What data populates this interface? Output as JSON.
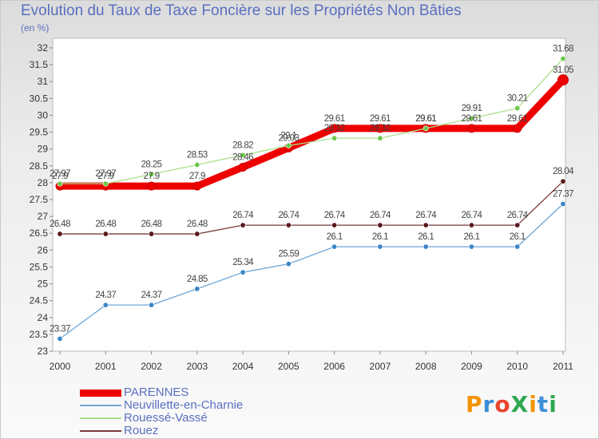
{
  "header": {
    "title": "Evolution du Taux de Taxe Foncière sur les Propriétés Non Bâties",
    "unit": "(en %)"
  },
  "logo": {
    "text": "ProXiti",
    "colors": [
      "#f29400",
      "#3a8fd6",
      "#e8462b",
      "#2fa84f",
      "#f29400",
      "#3a8fd6",
      "#2fa84f"
    ]
  },
  "chart_data": {
    "type": "line",
    "title": "Evolution du Taux de Taxe Foncière sur les Propriétés Non Bâties",
    "ylabel": "(en %)",
    "xlabel": "",
    "ylim": [
      23,
      32
    ],
    "ytick_step": 0.5,
    "grid": false,
    "legend_position": "bottom-left",
    "categories": [
      "2000",
      "2001",
      "2002",
      "2003",
      "2004",
      "2005",
      "2006",
      "2007",
      "2008",
      "2009",
      "2010",
      "2011"
    ],
    "series": [
      {
        "name": "PARENNES",
        "color": "#ee0000",
        "bold": true,
        "values": [
          27.9,
          27.9,
          27.9,
          27.9,
          28.46,
          29.03,
          29.61,
          29.61,
          29.61,
          29.61,
          29.61,
          31.05
        ],
        "labels": [
          "27.9",
          "27.9",
          "27.9",
          "27.9",
          "28.46",
          "29.03",
          "29.61",
          "29.61",
          "29.61",
          "29.61",
          "29.61",
          "31.05"
        ]
      },
      {
        "name": "Neuvillette-en-Charnie",
        "color": "#6ea6d8",
        "marker": "#3a86c8",
        "bold": false,
        "values": [
          23.37,
          24.37,
          24.37,
          24.85,
          25.34,
          25.59,
          26.1,
          26.1,
          26.1,
          26.1,
          26.1,
          27.37
        ],
        "labels": [
          "23.37",
          "24.37",
          "24.37",
          "24.85",
          "25.34",
          "25.59",
          "26.1",
          "26.1",
          "26.1",
          "26.1",
          "26.1",
          "27.37"
        ]
      },
      {
        "name": "Rouessé-Vassé",
        "color": "#a8e088",
        "marker": "#6cc84a",
        "bold": false,
        "values": [
          27.97,
          27.97,
          28.25,
          28.53,
          28.82,
          29.1,
          29.32,
          29.32,
          29.61,
          29.91,
          30.21,
          31.68
        ],
        "labels": [
          "27.97",
          "27.97",
          "28.25",
          "28.53",
          "28.82",
          "29.1",
          "29.32",
          "29.32",
          "29.61",
          "29.91",
          "30.21",
          "31.68"
        ]
      },
      {
        "name": "Rouez",
        "color": "#7a3a3a",
        "marker": "#5a1a1a",
        "bold": false,
        "values": [
          26.48,
          26.48,
          26.48,
          26.48,
          26.74,
          26.74,
          26.74,
          26.74,
          26.74,
          26.74,
          26.74,
          28.04
        ],
        "labels": [
          "26.48",
          "26.48",
          "26.48",
          "26.48",
          "26.74",
          "26.74",
          "26.74",
          "26.74",
          "26.74",
          "26.74",
          "26.74",
          "28.04"
        ]
      }
    ]
  }
}
